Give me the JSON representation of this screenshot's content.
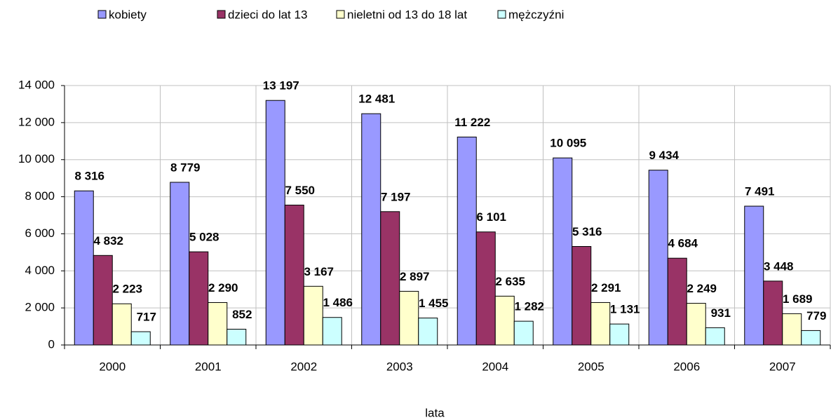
{
  "chart_data": {
    "type": "bar",
    "x_label": "lata",
    "categories": [
      "2000",
      "2001",
      "2002",
      "2003",
      "2004",
      "2005",
      "2006",
      "2007"
    ],
    "series": [
      {
        "name": "kobiety",
        "color": "#9999ff",
        "values": [
          8316,
          8779,
          13197,
          12481,
          11222,
          10095,
          9434,
          7491
        ],
        "value_labels": [
          "8 316",
          "8 779",
          "13 197",
          "12 481",
          "11 222",
          "10 095",
          "9 434",
          "7 491"
        ]
      },
      {
        "name": "dzieci do lat 13",
        "color": "#993366",
        "values": [
          4832,
          5028,
          7550,
          7197,
          6101,
          5316,
          4684,
          3448
        ],
        "value_labels": [
          "4 832",
          "5 028",
          "7 550",
          "7 197",
          "6 101",
          "5 316",
          "4 684",
          "3 448"
        ]
      },
      {
        "name": "nieletni od 13 do 18 lat",
        "color": "#ffffcc",
        "values": [
          2223,
          2290,
          3167,
          2897,
          2635,
          2291,
          2249,
          1689
        ],
        "value_labels": [
          "2 223",
          "2 290",
          "3 167",
          "2 897",
          "2 635",
          "2 291",
          "2 249",
          "1 689"
        ]
      },
      {
        "name": "mężczyźni",
        "color": "#ccffff",
        "values": [
          717,
          852,
          1486,
          1455,
          1282,
          1131,
          931,
          779
        ],
        "value_labels": [
          "717",
          "852",
          "1 486",
          "1 455",
          "1 282",
          "1 131",
          "931",
          "779"
        ]
      }
    ],
    "ylim": [
      0,
      14000
    ],
    "yticks": [
      0,
      {
        "value": 2000,
        "label": "2 000"
      },
      {
        "value": 4000,
        "label": "4 000"
      },
      {
        "value": 6000,
        "label": "6 000"
      },
      {
        "value": 8000,
        "label": "8 000"
      },
      {
        "value": 10000,
        "label": "10 000"
      },
      {
        "value": 12000,
        "label": "12 000"
      },
      {
        "value": 14000,
        "label": "14 000"
      }
    ],
    "grid": true,
    "legend": "top"
  }
}
